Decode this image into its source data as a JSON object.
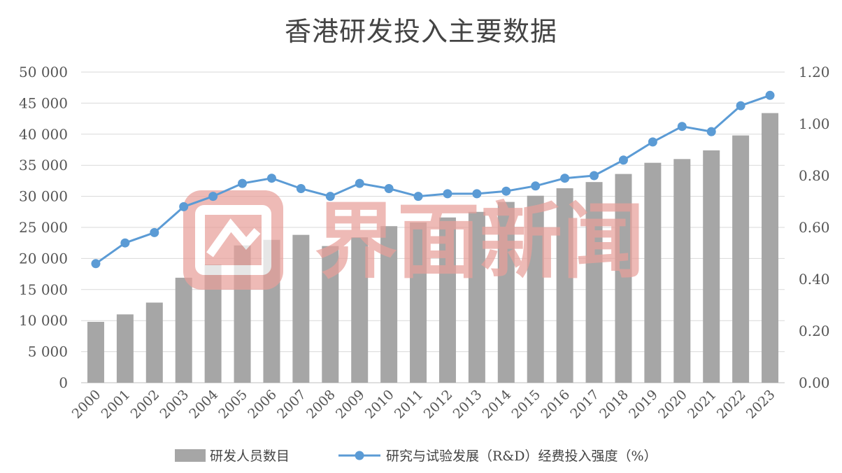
{
  "chart_data": {
    "type": "bar",
    "title": "香港研发投入主要数据",
    "categories": [
      "2000",
      "2001",
      "2002",
      "2003",
      "2004",
      "2005",
      "2006",
      "2007",
      "2008",
      "2009",
      "2010",
      "2011",
      "2012",
      "2013",
      "2014",
      "2015",
      "2016",
      "2017",
      "2018",
      "2019",
      "2020",
      "2021",
      "2022",
      "2023"
    ],
    "series": [
      {
        "name": "研发人员数目",
        "type": "bar",
        "axis": "left",
        "color": "#a6a6a6",
        "values": [
          9800,
          11000,
          12900,
          16900,
          19000,
          22100,
          23000,
          23800,
          22000,
          23400,
          25200,
          25800,
          26600,
          27500,
          29100,
          30100,
          31300,
          32300,
          33600,
          35400,
          36000,
          37400,
          39800,
          43400
        ]
      },
      {
        "name": "研究与试验发展（R&D）经费投入强度（%）",
        "type": "line",
        "axis": "right",
        "color": "#5b9bd5",
        "values": [
          0.46,
          0.54,
          0.58,
          0.68,
          0.72,
          0.77,
          0.79,
          0.75,
          0.72,
          0.77,
          0.75,
          0.72,
          0.73,
          0.73,
          0.74,
          0.76,
          0.79,
          0.8,
          0.86,
          0.93,
          0.99,
          0.97,
          1.07,
          1.11
        ]
      }
    ],
    "y_left": {
      "range": [
        0,
        50000
      ],
      "ticks": [
        0,
        5000,
        10000,
        15000,
        20000,
        25000,
        30000,
        35000,
        40000,
        45000,
        50000
      ],
      "tick_labels": [
        "0",
        "5 000",
        "10 000",
        "15 000",
        "20 000",
        "25 000",
        "30 000",
        "35 000",
        "40 000",
        "45 000",
        "50 000"
      ]
    },
    "y_right": {
      "range": [
        0,
        1.2
      ],
      "ticks": [
        0,
        0.2,
        0.4,
        0.6,
        0.8,
        1.0,
        1.2
      ],
      "tick_labels": [
        "0.00",
        "0.20",
        "0.40",
        "0.60",
        "0.80",
        "1.00",
        "1.20"
      ]
    },
    "grid": true,
    "legend": "bottom",
    "xlabel": "",
    "ylabel": ""
  },
  "watermark": {
    "text": "界面新闻",
    "color": "#e8a09a"
  }
}
